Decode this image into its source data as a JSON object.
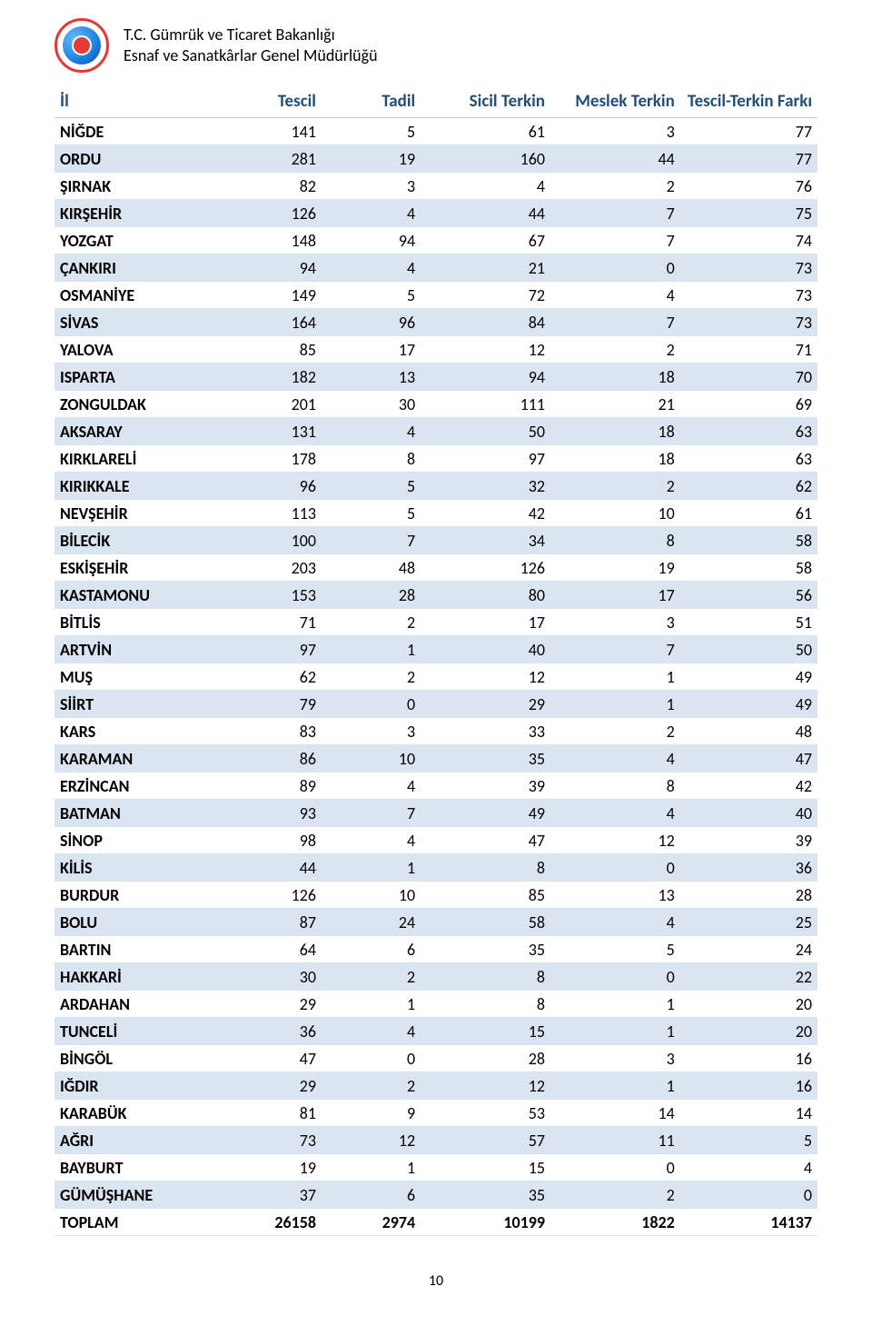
{
  "header": {
    "line1": "T.C. Gümrük ve Ticaret Bakanlığı",
    "line2": "Esnaf ve Sanatkârlar Genel Müdürlüğü"
  },
  "table": {
    "columns": [
      "İl",
      "Tescil",
      "Tadil",
      "Sicil Terkin",
      "Meslek Terkin",
      "Tescil-Terkin Farkı"
    ],
    "col_align": [
      "left",
      "right",
      "right",
      "right",
      "right",
      "right"
    ],
    "header_color": "#1f4e79",
    "row_even_bg": "#ffffff",
    "row_odd_bg": "#dbe5f1",
    "border_color": "#d6e3f0",
    "rows": [
      [
        "NİĞDE",
        141,
        5,
        61,
        3,
        77
      ],
      [
        "ORDU",
        281,
        19,
        160,
        44,
        77
      ],
      [
        "ŞIRNAK",
        82,
        3,
        4,
        2,
        76
      ],
      [
        "KIRŞEHİR",
        126,
        4,
        44,
        7,
        75
      ],
      [
        "YOZGAT",
        148,
        94,
        67,
        7,
        74
      ],
      [
        "ÇANKIRI",
        94,
        4,
        21,
        0,
        73
      ],
      [
        "OSMANİYE",
        149,
        5,
        72,
        4,
        73
      ],
      [
        "SİVAS",
        164,
        96,
        84,
        7,
        73
      ],
      [
        "YALOVA",
        85,
        17,
        12,
        2,
        71
      ],
      [
        "ISPARTA",
        182,
        13,
        94,
        18,
        70
      ],
      [
        "ZONGULDAK",
        201,
        30,
        111,
        21,
        69
      ],
      [
        "AKSARAY",
        131,
        4,
        50,
        18,
        63
      ],
      [
        "KIRKLARELİ",
        178,
        8,
        97,
        18,
        63
      ],
      [
        "KIRIKKALE",
        96,
        5,
        32,
        2,
        62
      ],
      [
        "NEVŞEHİR",
        113,
        5,
        42,
        10,
        61
      ],
      [
        "BİLECİK",
        100,
        7,
        34,
        8,
        58
      ],
      [
        "ESKİŞEHİR",
        203,
        48,
        126,
        19,
        58
      ],
      [
        "KASTAMONU",
        153,
        28,
        80,
        17,
        56
      ],
      [
        "BİTLİS",
        71,
        2,
        17,
        3,
        51
      ],
      [
        "ARTVİN",
        97,
        1,
        40,
        7,
        50
      ],
      [
        "MUŞ",
        62,
        2,
        12,
        1,
        49
      ],
      [
        "SİİRT",
        79,
        0,
        29,
        1,
        49
      ],
      [
        "KARS",
        83,
        3,
        33,
        2,
        48
      ],
      [
        "KARAMAN",
        86,
        10,
        35,
        4,
        47
      ],
      [
        "ERZİNCAN",
        89,
        4,
        39,
        8,
        42
      ],
      [
        "BATMAN",
        93,
        7,
        49,
        4,
        40
      ],
      [
        "SİNOP",
        98,
        4,
        47,
        12,
        39
      ],
      [
        "KİLİS",
        44,
        1,
        8,
        0,
        36
      ],
      [
        "BURDUR",
        126,
        10,
        85,
        13,
        28
      ],
      [
        "BOLU",
        87,
        24,
        58,
        4,
        25
      ],
      [
        "BARTIN",
        64,
        6,
        35,
        5,
        24
      ],
      [
        "HAKKARİ",
        30,
        2,
        8,
        0,
        22
      ],
      [
        "ARDAHAN",
        29,
        1,
        8,
        1,
        20
      ],
      [
        "TUNCELİ",
        36,
        4,
        15,
        1,
        20
      ],
      [
        "BİNGÖL",
        47,
        0,
        28,
        3,
        16
      ],
      [
        "IĞDIR",
        29,
        2,
        12,
        1,
        16
      ],
      [
        "KARABÜK",
        81,
        9,
        53,
        14,
        14
      ],
      [
        "AĞRI",
        73,
        12,
        57,
        11,
        5
      ],
      [
        "BAYBURT",
        19,
        1,
        15,
        0,
        4
      ],
      [
        "GÜMÜŞHANE",
        37,
        6,
        35,
        2,
        0
      ]
    ],
    "total_row": [
      "TOPLAM",
      26158,
      2974,
      10199,
      1822,
      14137
    ]
  },
  "page_number": "10"
}
